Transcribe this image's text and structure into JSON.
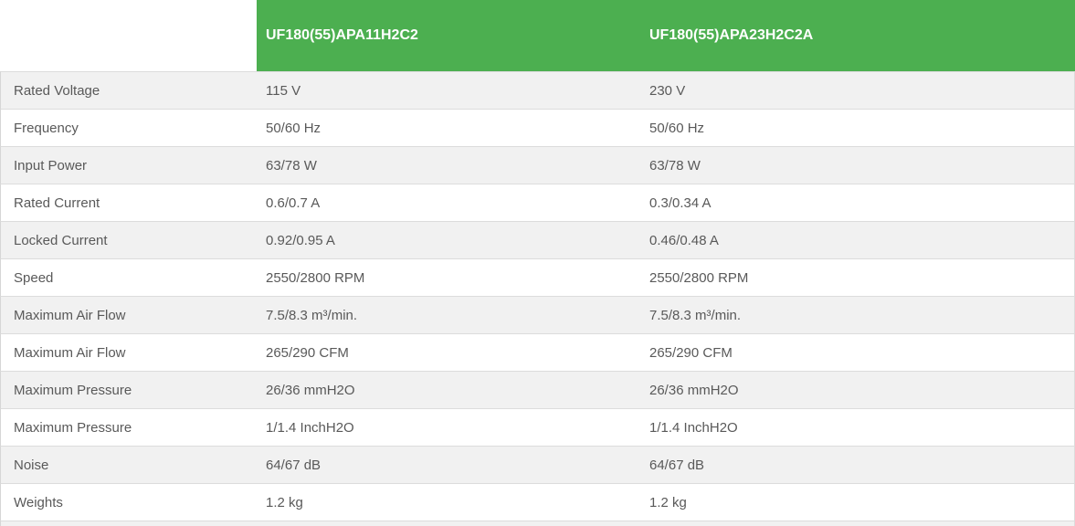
{
  "colors": {
    "green": "#4caf50",
    "header_text": "#ffffff",
    "row_shade": "#f1f1f1",
    "row_plain": "#ffffff",
    "separator": "#dcdcdc",
    "side_border": "#d6d6d6",
    "text": "#595959"
  },
  "table": {
    "columns": [
      "UF180(55)APA11H2C2",
      "UF180(55)APA23H2C2A"
    ],
    "rows": [
      {
        "label": "Rated Voltage",
        "model1": "115 V",
        "model2": "230 V"
      },
      {
        "label": "Frequency",
        "model1": "50/60 Hz",
        "model2": "50/60 Hz"
      },
      {
        "label": "Input Power",
        "model1": "63/78 W",
        "model2": "63/78 W"
      },
      {
        "label": "Rated Current",
        "model1": "0.6/0.7 A",
        "model2": "0.3/0.34 A"
      },
      {
        "label": "Locked Current",
        "model1": "0.92/0.95 A",
        "model2": "0.46/0.48 A"
      },
      {
        "label": "Speed",
        "model1": "2550/2800 RPM",
        "model2": "2550/2800 RPM"
      },
      {
        "label": "Maximum Air Flow",
        "model1": "7.5/8.3 m³/min.",
        "model2": "7.5/8.3 m³/min."
      },
      {
        "label": "Maximum Air Flow",
        "model1": "265/290 CFM",
        "model2": "265/290 CFM"
      },
      {
        "label": "Maximum Pressure",
        "model1": "26/36 mmH2O",
        "model2": "26/36 mmH2O"
      },
      {
        "label": "Maximum Pressure",
        "model1": "1/1.4 InchH2O",
        "model2": "1/1.4 InchH2O"
      },
      {
        "label": "Noise",
        "model1": "64/67 dB",
        "model2": "64/67 dB"
      },
      {
        "label": "Weights",
        "model1": "1.2 kg",
        "model2": "1.2 kg"
      }
    ]
  }
}
